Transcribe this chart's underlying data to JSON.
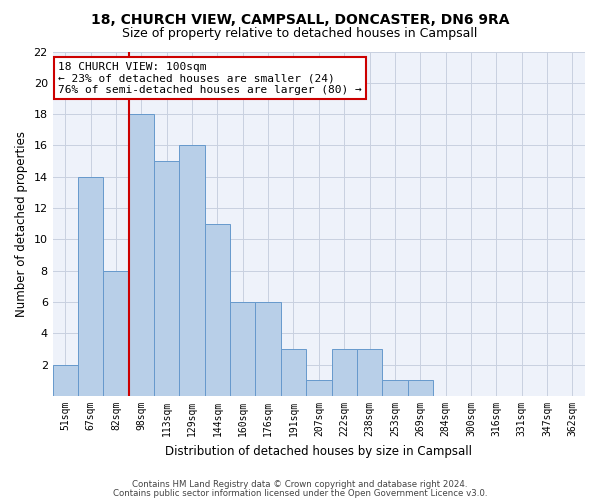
{
  "title1": "18, CHURCH VIEW, CAMPSALL, DONCASTER, DN6 9RA",
  "title2": "Size of property relative to detached houses in Campsall",
  "xlabel": "Distribution of detached houses by size in Campsall",
  "ylabel": "Number of detached properties",
  "categories": [
    "51sqm",
    "67sqm",
    "82sqm",
    "98sqm",
    "113sqm",
    "129sqm",
    "144sqm",
    "160sqm",
    "176sqm",
    "191sqm",
    "207sqm",
    "222sqm",
    "238sqm",
    "253sqm",
    "269sqm",
    "284sqm",
    "300sqm",
    "316sqm",
    "331sqm",
    "347sqm",
    "362sqm"
  ],
  "values": [
    2,
    14,
    8,
    18,
    15,
    16,
    11,
    6,
    6,
    3,
    1,
    3,
    3,
    1,
    1,
    0,
    0,
    0,
    0,
    0,
    0
  ],
  "bar_color": "#b8cfe8",
  "bar_edge_color": "#6699cc",
  "vline_color": "#cc0000",
  "annotation_text": "18 CHURCH VIEW: 100sqm\n← 23% of detached houses are smaller (24)\n76% of semi-detached houses are larger (80) →",
  "annotation_box_color": "#ffffff",
  "annotation_box_edge": "#cc0000",
  "ylim": [
    0,
    22
  ],
  "yticks": [
    0,
    2,
    4,
    6,
    8,
    10,
    12,
    14,
    16,
    18,
    20,
    22
  ],
  "footer1": "Contains HM Land Registry data © Crown copyright and database right 2024.",
  "footer2": "Contains public sector information licensed under the Open Government Licence v3.0.",
  "bg_color": "#eef2fa",
  "grid_color": "#c8d0e0"
}
